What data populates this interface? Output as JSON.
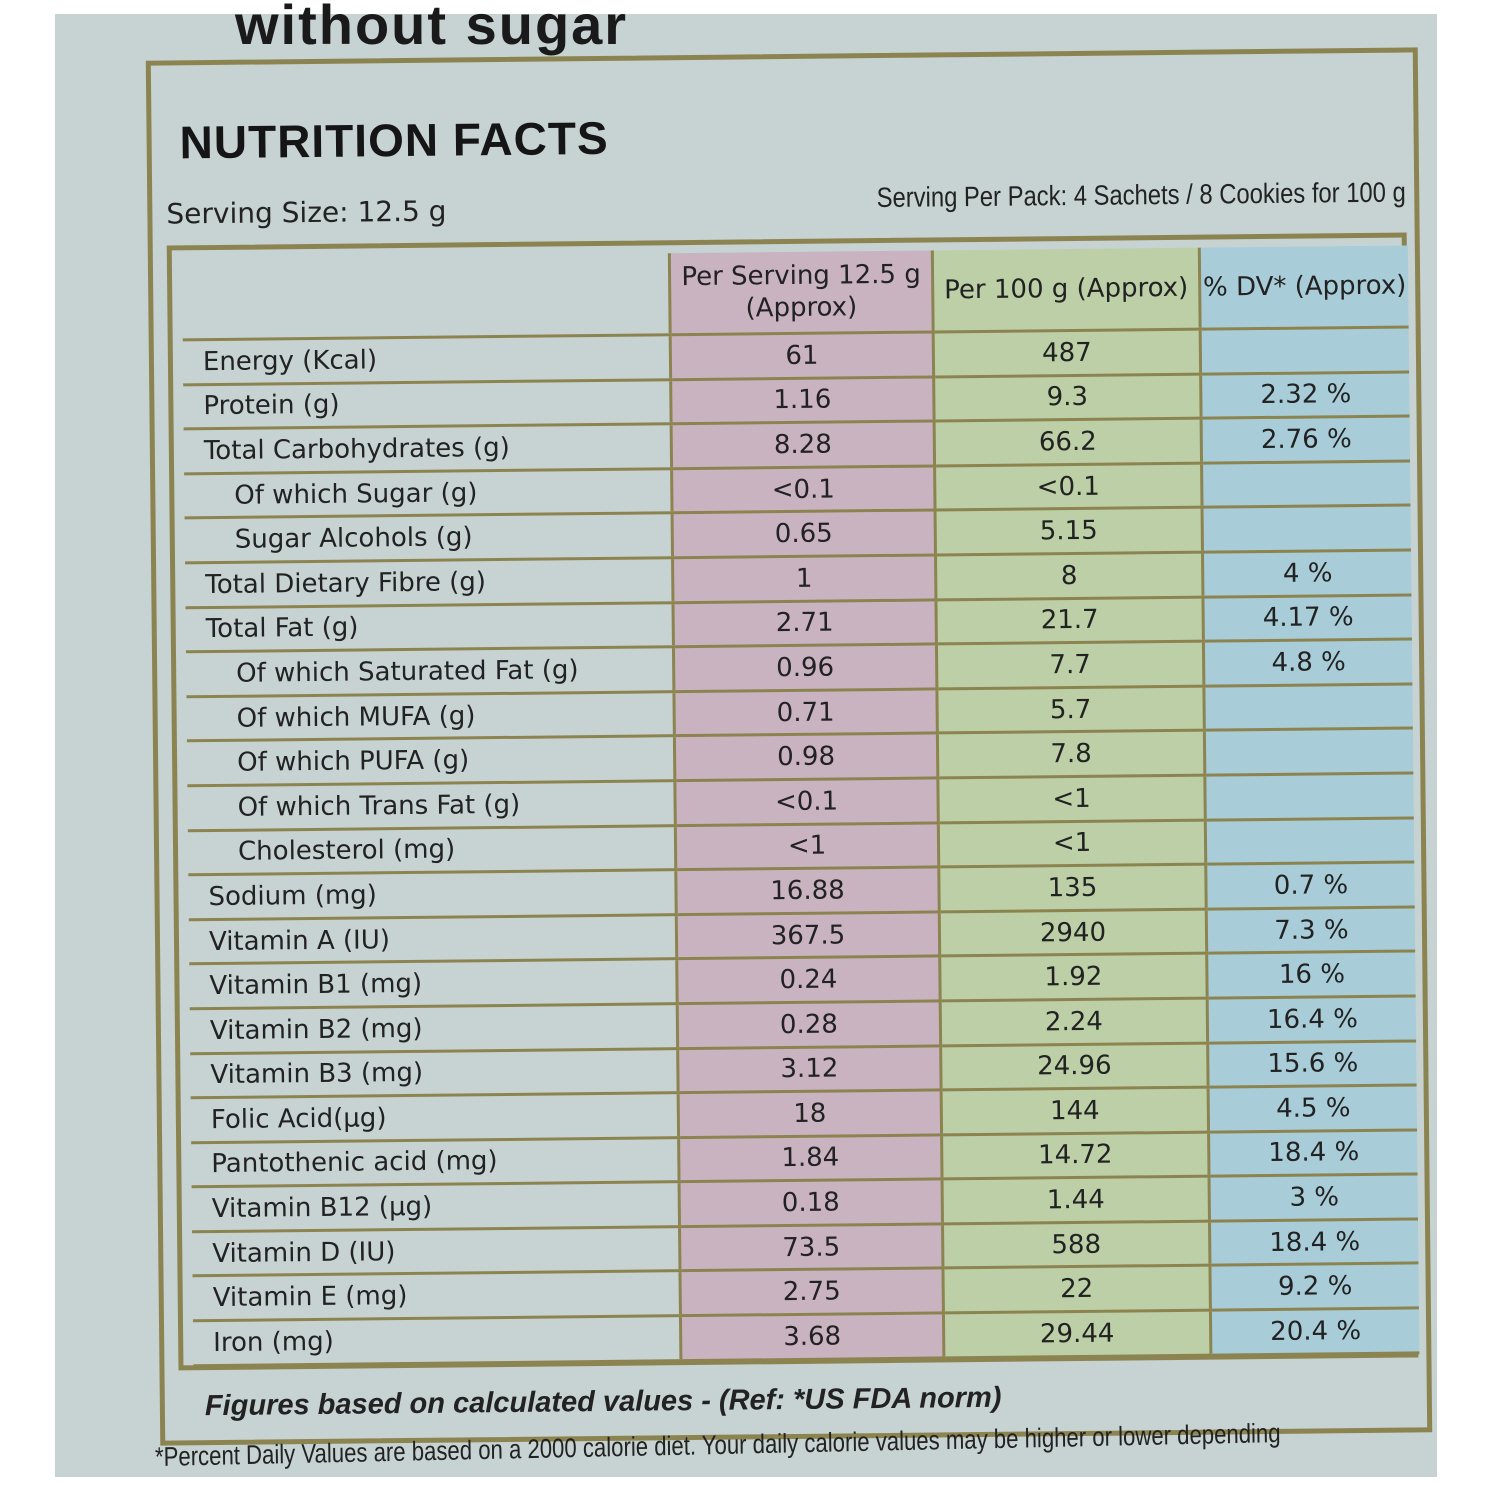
{
  "banner_fragment": "without sugar",
  "title": "NUTRITION FACTS",
  "serving_size": "Serving Size:  12.5 g",
  "serving_per_pack": "Serving Per Pack: 4 Sachets / 8 Cookies for 100 g",
  "columns": [
    "",
    "Per Serving 12.5 g (Approx)",
    "Per 100 g (Approx)",
    "% DV* (Approx)"
  ],
  "colors": {
    "per_serving": "#c9b3c1",
    "per_100g": "#bccfa7",
    "dv": "#a8ccd8",
    "border": "#8c8450"
  },
  "rows": [
    {
      "label": "Energy (Kcal)",
      "serving": "61",
      "per100": "487",
      "dv": ""
    },
    {
      "label": "Protein (g)",
      "serving": "1.16",
      "per100": "9.3",
      "dv": "2.32 %"
    },
    {
      "label": "Total Carbohydrates (g)",
      "serving": "8.28",
      "per100": "66.2",
      "dv": "2.76 %"
    },
    {
      "label": "Of which Sugar (g)",
      "serving": "<0.1",
      "per100": "<0.1",
      "dv": "",
      "sub": true
    },
    {
      "label": "Sugar Alcohols (g)",
      "serving": "0.65",
      "per100": "5.15",
      "dv": "",
      "sub": true
    },
    {
      "label": "Total Dietary Fibre (g)",
      "serving": "1",
      "per100": "8",
      "dv": "4 %"
    },
    {
      "label": "Total Fat (g)",
      "serving": "2.71",
      "per100": "21.7",
      "dv": "4.17 %"
    },
    {
      "label": "Of which Saturated Fat (g)",
      "serving": "0.96",
      "per100": "7.7",
      "dv": "4.8 %",
      "sub": true
    },
    {
      "label": "Of which MUFA (g)",
      "serving": "0.71",
      "per100": "5.7",
      "dv": "",
      "sub": true
    },
    {
      "label": "Of which PUFA (g)",
      "serving": "0.98",
      "per100": "7.8",
      "dv": "",
      "sub": true
    },
    {
      "label": "Of which Trans Fat (g)",
      "serving": "<0.1",
      "per100": "<1",
      "dv": "",
      "sub": true
    },
    {
      "label": "Cholesterol (mg)",
      "serving": "<1",
      "per100": "<1",
      "dv": "",
      "sub": true
    },
    {
      "label": "Sodium (mg)",
      "serving": "16.88",
      "per100": "135",
      "dv": "0.7 %"
    },
    {
      "label": "Vitamin A (IU)",
      "serving": "367.5",
      "per100": "2940",
      "dv": "7.3 %"
    },
    {
      "label": "Vitamin B1 (mg)",
      "serving": "0.24",
      "per100": "1.92",
      "dv": "16 %"
    },
    {
      "label": "Vitamin B2 (mg)",
      "serving": "0.28",
      "per100": "2.24",
      "dv": "16.4 %"
    },
    {
      "label": "Vitamin  B3 (mg)",
      "serving": "3.12",
      "per100": "24.96",
      "dv": "15.6 %"
    },
    {
      "label": "Folic Acid(µg)",
      "serving": "18",
      "per100": "144",
      "dv": "4.5 %"
    },
    {
      "label": "Pantothenic acid (mg)",
      "serving": "1.84",
      "per100": "14.72",
      "dv": "18.4 %"
    },
    {
      "label": "Vitamin  B12 (µg)",
      "serving": "0.18",
      "per100": "1.44",
      "dv": "3 %"
    },
    {
      "label": "Vitamin D (IU)",
      "serving": "73.5",
      "per100": "588",
      "dv": "18.4 %"
    },
    {
      "label": "Vitamin E (mg)",
      "serving": "2.75",
      "per100": "22",
      "dv": "9.2 %"
    },
    {
      "label": "Iron (mg)",
      "serving": "3.68",
      "per100": "29.44",
      "dv": "20.4 %"
    }
  ],
  "footnote_ref": "Figures based on calculated values - (Ref: *US FDA norm)",
  "footnote_dv": "*Percent Daily Values are based on a 2000 calorie diet. Your daily calorie values may be higher or lower depending"
}
